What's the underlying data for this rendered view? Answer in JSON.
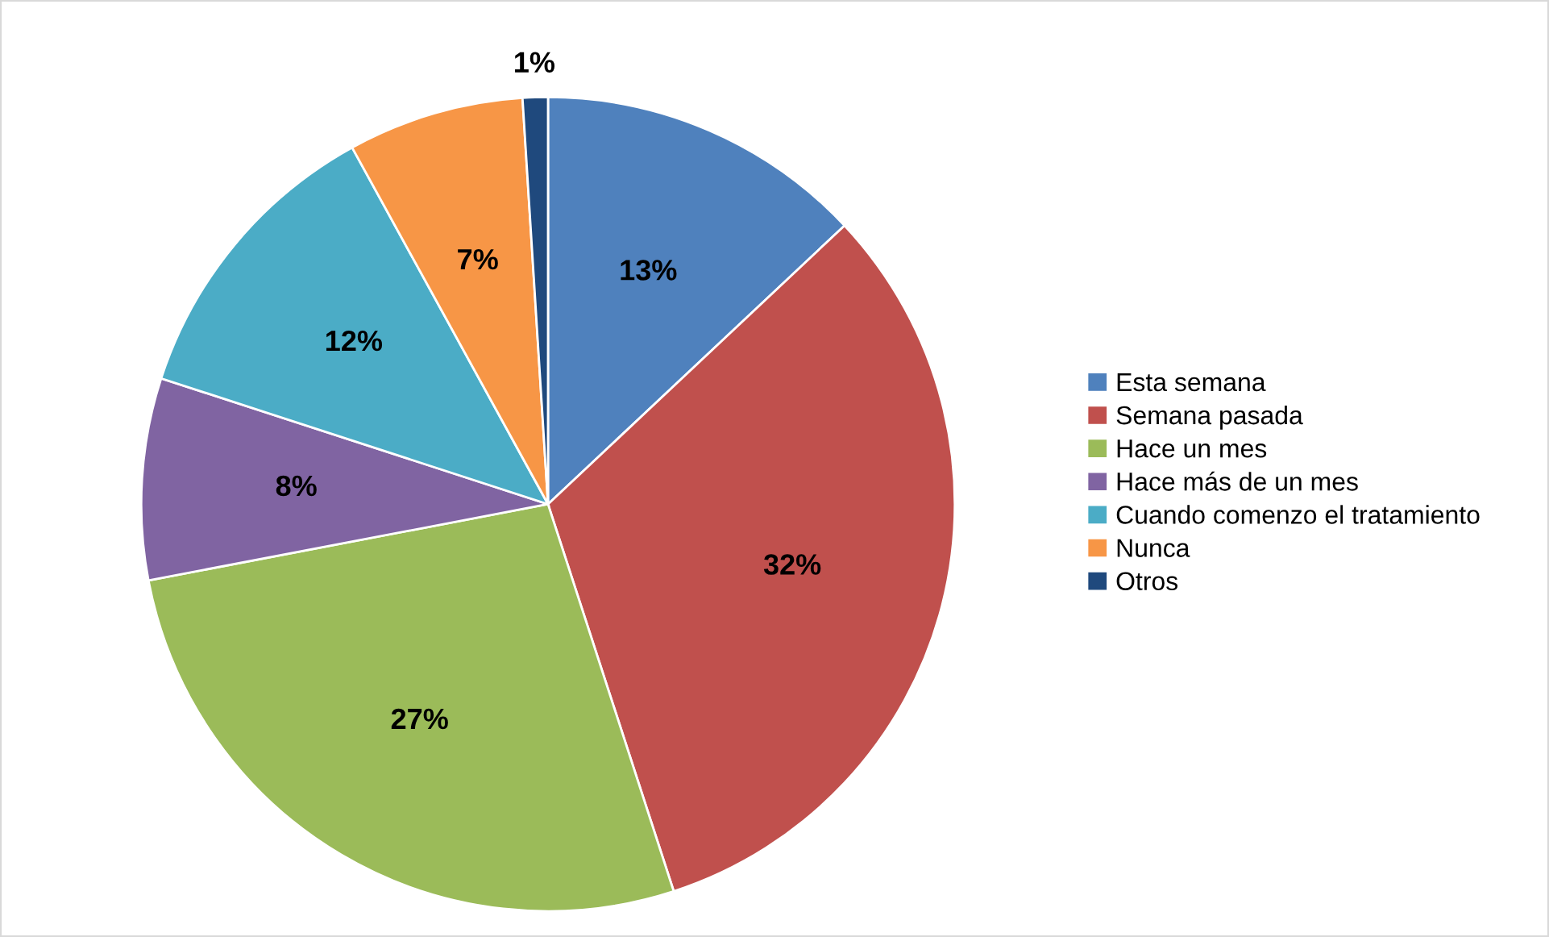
{
  "chart_data": {
    "type": "pie",
    "categories": [
      "Esta semana",
      "Semana pasada",
      "Hace un mes",
      "Hace más de un mes",
      "Cuando comenzo el tratamiento",
      "Nunca",
      "Otros"
    ],
    "values": [
      13,
      32,
      27,
      8,
      12,
      7,
      1
    ],
    "value_labels": [
      "13%",
      "32%",
      "27%",
      "8%",
      "12%",
      "7%",
      "1%"
    ],
    "colors": [
      "#4f81bd",
      "#c0504d",
      "#9bbb59",
      "#8064a2",
      "#4bacc6",
      "#f79646",
      "#1f497d"
    ],
    "legend": "right"
  }
}
